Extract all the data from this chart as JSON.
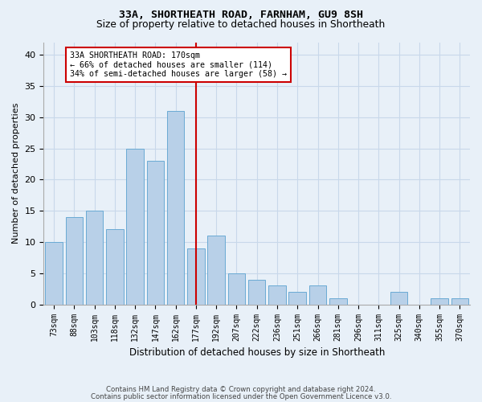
{
  "title1": "33A, SHORTHEATH ROAD, FARNHAM, GU9 8SH",
  "title2": "Size of property relative to detached houses in Shortheath",
  "xlabel": "Distribution of detached houses by size in Shortheath",
  "ylabel": "Number of detached properties",
  "categories": [
    "73sqm",
    "88sqm",
    "103sqm",
    "118sqm",
    "132sqm",
    "147sqm",
    "162sqm",
    "177sqm",
    "192sqm",
    "207sqm",
    "222sqm",
    "236sqm",
    "251sqm",
    "266sqm",
    "281sqm",
    "296sqm",
    "311sqm",
    "325sqm",
    "340sqm",
    "355sqm",
    "370sqm"
  ],
  "values": [
    10,
    14,
    15,
    12,
    25,
    23,
    31,
    9,
    11,
    5,
    4,
    3,
    2,
    3,
    1,
    0,
    0,
    2,
    0,
    1,
    1
  ],
  "bar_color": "#b8d0e8",
  "bar_edge_color": "#6aaad4",
  "vline_x": 7,
  "vline_color": "#cc0000",
  "annotation_text": "33A SHORTHEATH ROAD: 170sqm\n← 66% of detached houses are smaller (114)\n34% of semi-detached houses are larger (58) →",
  "annotation_box_color": "#cc0000",
  "annotation_fill": "white",
  "ylim": [
    0,
    42
  ],
  "yticks": [
    0,
    5,
    10,
    15,
    20,
    25,
    30,
    35,
    40
  ],
  "grid_color": "#c8d8ea",
  "bg_color": "#e8f0f8",
  "footer1": "Contains HM Land Registry data © Crown copyright and database right 2024.",
  "footer2": "Contains public sector information licensed under the Open Government Licence v3.0."
}
